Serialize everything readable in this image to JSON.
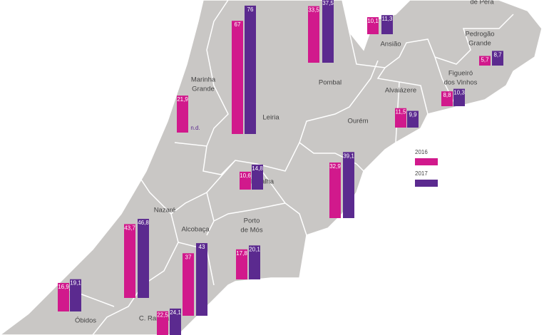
{
  "legend": [
    {
      "name": "2016",
      "color": "#d1198c"
    },
    {
      "name": "2017",
      "color": "#5b2a8f"
    }
  ],
  "municipalities": [
    {
      "name": [
        "de Pêra"
      ]
    },
    {
      "name": [
        "Ansião"
      ],
      "values": [
        10.1,
        11.3
      ],
      "value_labels": [
        "10,1",
        "11,3"
      ]
    },
    {
      "name": [
        "Pombal"
      ],
      "values": [
        33.5,
        37.5
      ],
      "value_labels": [
        "33,5",
        "37,5"
      ]
    },
    {
      "name": [
        "Pedrogão",
        "Grande"
      ],
      "values": [
        5.7,
        8.7
      ],
      "value_labels": [
        "5,7",
        "8,7"
      ]
    },
    {
      "name": [
        "Figueiró",
        "dos Vinhos"
      ],
      "values": [
        8.8,
        10.3
      ],
      "value_labels": [
        "8,8",
        "10,3"
      ]
    },
    {
      "name": [
        "Alvaiázere"
      ],
      "values": [
        11.5,
        9.9
      ],
      "value_labels": [
        "11,5",
        "9,9"
      ]
    },
    {
      "name": [
        "Marinha",
        "Grande"
      ],
      "values": [
        21.9,
        null
      ],
      "value_labels": [
        "21,9",
        "n.d."
      ]
    },
    {
      "name": [
        "Leiria"
      ],
      "values": [
        67,
        76
      ]
    },
    {
      "name": [
        "Ourém"
      ],
      "values": [
        32.9,
        39.1
      ],
      "value_labels": [
        "32,9",
        "39,1"
      ]
    },
    {
      "name": [
        "Batalha"
      ],
      "values": [
        10.6,
        14.8
      ],
      "value_labels": [
        "10,6",
        "14,8"
      ]
    },
    {
      "name": [
        "Nazaré"
      ],
      "values": [
        43.7,
        46.8
      ],
      "value_labels": [
        "43,7",
        "46,8"
      ]
    },
    {
      "name": [
        "Alcobaça"
      ],
      "values": [
        37,
        43
      ]
    },
    {
      "name": [
        "Porto",
        "de Mós"
      ],
      "values": [
        17.8,
        20.1
      ],
      "value_labels": [
        "17,8",
        "20,1"
      ]
    },
    {
      "name": [
        "Óbidos"
      ],
      "values": [
        16.9,
        19.1
      ],
      "value_labels": [
        "16,9",
        "19,1"
      ]
    },
    {
      "name": [
        "C. Rainha"
      ],
      "values": [
        22.5,
        24.1
      ],
      "value_labels": [
        "22,5",
        "24,1"
      ]
    }
  ]
}
